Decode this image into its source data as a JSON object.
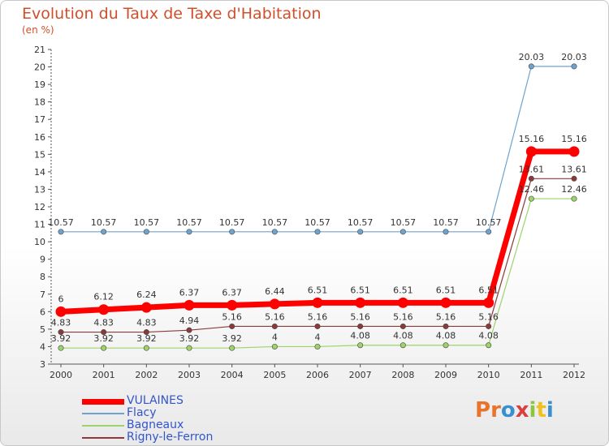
{
  "chart_data": {
    "type": "line",
    "title": "Evolution du Taux de Taxe d'Habitation",
    "unit_label": "(en %)",
    "x": [
      "2000",
      "2001",
      "2002",
      "2003",
      "2004",
      "2005",
      "2006",
      "2007",
      "2008",
      "2009",
      "2010",
      "2011",
      "2012"
    ],
    "ylim": [
      3,
      21
    ],
    "yticks": [
      3,
      4,
      5,
      6,
      7,
      8,
      9,
      10,
      11,
      12,
      13,
      14,
      15,
      16,
      17,
      18,
      19,
      20,
      21
    ],
    "grid": false,
    "legend_position": "bottom-left",
    "series": [
      {
        "name": "VULAINES",
        "color": "#ff0000",
        "values": [
          6,
          6.12,
          6.24,
          6.37,
          6.37,
          6.44,
          6.51,
          6.51,
          6.51,
          6.51,
          6.51,
          15.16,
          15.16
        ],
        "labels": [
          "6",
          "6.12",
          "6.24",
          "6.37",
          "6.37",
          "6.44",
          "6.51",
          "6.51",
          "6.51",
          "6.51",
          "6.51",
          "15.16",
          "15.16"
        ]
      },
      {
        "name": "Flacy",
        "color": "#6ea3cf",
        "values": [
          10.57,
          10.57,
          10.57,
          10.57,
          10.57,
          10.57,
          10.57,
          10.57,
          10.57,
          10.57,
          10.57,
          20.03,
          20.03
        ],
        "labels": [
          "10.57",
          "10.57",
          "10.57",
          "10.57",
          "10.57",
          "10.57",
          "10.57",
          "10.57",
          "10.57",
          "10.57",
          "10.57",
          "20.03",
          "20.03"
        ]
      },
      {
        "name": "Bagneaux",
        "color": "#9dd36a",
        "values": [
          3.92,
          3.92,
          3.92,
          3.92,
          3.92,
          4,
          4,
          4.08,
          4.08,
          4.08,
          4.08,
          12.46,
          12.46
        ],
        "labels": [
          "3.92",
          "3.92",
          "3.92",
          "3.92",
          "3.92",
          "4",
          "4",
          "4.08",
          "4.08",
          "4.08",
          "4.08",
          "12.46",
          "12.46"
        ]
      },
      {
        "name": "Rigny-le-Ferron",
        "color": "#8b3a3a",
        "values": [
          4.83,
          4.83,
          4.83,
          4.94,
          5.16,
          5.16,
          5.16,
          5.16,
          5.16,
          5.16,
          5.16,
          13.61,
          13.61
        ],
        "labels": [
          "4.83",
          "4.83",
          "4.83",
          "4.94",
          "5.16",
          "5.16",
          "5.16",
          "5.16",
          "5.16",
          "5.16",
          "5.16",
          "13.61",
          "13.61"
        ]
      }
    ]
  },
  "branding": {
    "logo_text": "Proxiti",
    "logo_colors": [
      "#e8732a",
      "#e8732a",
      "#3a8fd1",
      "#d94040",
      "#8cc63f",
      "#f0c020",
      "#3a8fd1"
    ]
  }
}
